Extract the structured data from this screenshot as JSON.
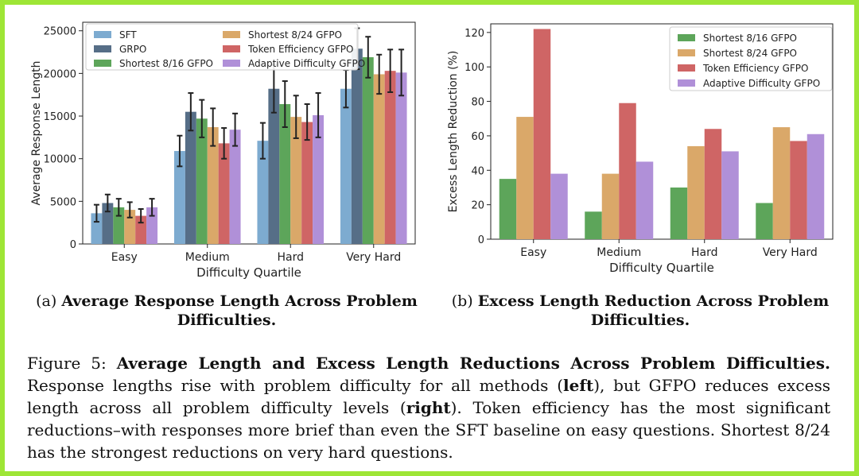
{
  "chart_data": [
    {
      "type": "bar",
      "categories": [
        "Easy",
        "Medium",
        "Hard",
        "Very Hard"
      ],
      "xlabel": "Difficulty Quartile",
      "ylabel": "Average Response Length",
      "ylim": [
        0,
        26000
      ],
      "yticks": [
        "0",
        "5000",
        "10000",
        "15000",
        "20000",
        "25000"
      ],
      "legend_position": "top-left",
      "series": [
        {
          "name": "SFT",
          "color": "#7dabd0",
          "values": [
            3600,
            10900,
            12100,
            18200
          ],
          "errors": [
            1000,
            1800,
            2100,
            2200
          ]
        },
        {
          "name": "GRPO",
          "color": "#566e87",
          "values": [
            4800,
            15500,
            18200,
            22900
          ],
          "errors": [
            1000,
            2200,
            2800,
            2400
          ]
        },
        {
          "name": "Shortest 8/16 GFPO",
          "color": "#5da55a",
          "values": [
            4300,
            14700,
            16400,
            21900
          ],
          "errors": [
            1000,
            2200,
            2700,
            2400
          ]
        },
        {
          "name": "Shortest 8/24 GFPO",
          "color": "#daa869",
          "values": [
            4000,
            13700,
            14900,
            19900
          ],
          "errors": [
            900,
            2200,
            2500,
            2300
          ]
        },
        {
          "name": "Token Efficiency GFPO",
          "color": "#cf6565",
          "values": [
            3300,
            11800,
            14300,
            20300
          ],
          "errors": [
            800,
            1800,
            2100,
            2500
          ]
        },
        {
          "name": "Adaptive Difficulty GFPO",
          "color": "#b090d8",
          "values": [
            4300,
            13400,
            15100,
            20100
          ],
          "errors": [
            1000,
            1900,
            2600,
            2700
          ]
        }
      ]
    },
    {
      "type": "bar",
      "categories": [
        "Easy",
        "Medium",
        "Hard",
        "Very Hard"
      ],
      "xlabel": "Difficulty Quartile",
      "ylabel": "Excess Length Reduction (%)",
      "ylim": [
        0,
        125
      ],
      "yticks": [
        "0",
        "20",
        "40",
        "60",
        "80",
        "100",
        "120"
      ],
      "legend_position": "top-right",
      "series": [
        {
          "name": "Shortest 8/16 GFPO",
          "color": "#5da55a",
          "values": [
            35,
            16,
            30,
            21
          ]
        },
        {
          "name": "Shortest 8/24 GFPO",
          "color": "#daa869",
          "values": [
            71,
            38,
            54,
            65
          ]
        },
        {
          "name": "Token Efficiency GFPO",
          "color": "#cf6565",
          "values": [
            122,
            79,
            64,
            57
          ]
        },
        {
          "name": "Adaptive Difficulty GFPO",
          "color": "#b090d8",
          "values": [
            38,
            45,
            51,
            61
          ]
        }
      ]
    }
  ],
  "captions": {
    "a_prefix": "(a)",
    "a_bold_line1": "Average Response Length Across Problem",
    "a_bold_line2": "Difficulties.",
    "b_prefix": "(b)",
    "b_bold_line1": "Excess Length Reduction Across Problem",
    "b_bold_line2": "Difficulties."
  },
  "figure": {
    "label": "Figure 5:",
    "title": "Average Length and Excess Length Reductions Across Problem Difficulties.",
    "t1": "Response lengths rise with problem difficulty for all methods (",
    "left": "left",
    "t2": "), but GFPO reduces excess length across all problem difficulty levels (",
    "right": "right",
    "t3": "). Token efficiency has the most significant reductions–with responses more brief than even the SFT baseline on easy questions. Shortest 8/24 has the strongest reductions on very hard questions."
  }
}
